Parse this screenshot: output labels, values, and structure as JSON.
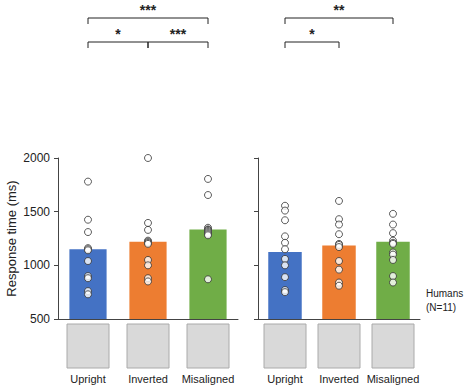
{
  "chart_data": [
    {
      "type": "bar",
      "ylabel": "Response time (ms)",
      "categories": [
        "Upright",
        "Inverted",
        "Misaligned"
      ],
      "values": [
        1150,
        1220,
        1335
      ],
      "colors": [
        "#4472c4",
        "#ed7d31",
        "#70ad47"
      ],
      "points": [
        [
          1780,
          1425,
          1310,
          1160,
          1150,
          1140,
          1040,
          900,
          880,
          760,
          730
        ],
        [
          2000,
          1395,
          1330,
          1230,
          1220,
          1210,
          1200,
          1050,
          1000,
          880,
          850
        ],
        [
          1805,
          1655,
          1350,
          1335,
          1330,
          1320,
          1310,
          1300,
          1290,
          1280,
          870
        ]
      ],
      "significance": [
        {
          "from": "Upright",
          "to": "Inverted",
          "label": "*"
        },
        {
          "from": "Inverted",
          "to": "Misaligned",
          "label": "***"
        },
        {
          "from": "Upright",
          "to": "Misaligned",
          "label": "***"
        }
      ],
      "ylim": [
        500,
        2000
      ],
      "yticks": [
        500,
        1000,
        1500,
        2000
      ],
      "grid": false
    },
    {
      "type": "bar",
      "categories": [
        "Upright",
        "Inverted",
        "Misaligned"
      ],
      "values": [
        1125,
        1185,
        1220
      ],
      "colors": [
        "#4472c4",
        "#ed7d31",
        "#70ad47"
      ],
      "points": [
        [
          1555,
          1510,
          1420,
          1270,
          1210,
          1150,
          1060,
          1000,
          890,
          770,
          750
        ],
        [
          1600,
          1430,
          1380,
          1290,
          1200,
          1190,
          1170,
          1040,
          960,
          840,
          810
        ],
        [
          1480,
          1380,
          1300,
          1230,
          1210,
          1200,
          1120,
          1100,
          1050,
          900,
          840
        ]
      ],
      "significance": [
        {
          "from": "Upright",
          "to": "Inverted",
          "label": "*"
        },
        {
          "from": "Upright",
          "to": "Misaligned",
          "label": "**"
        }
      ],
      "annotation": [
        "Humans",
        "(N=11)"
      ],
      "ylim": [
        500,
        2000
      ],
      "yticks": [
        500,
        1000,
        1500,
        2000
      ],
      "grid": false,
      "tick_labels": "x"
    }
  ]
}
